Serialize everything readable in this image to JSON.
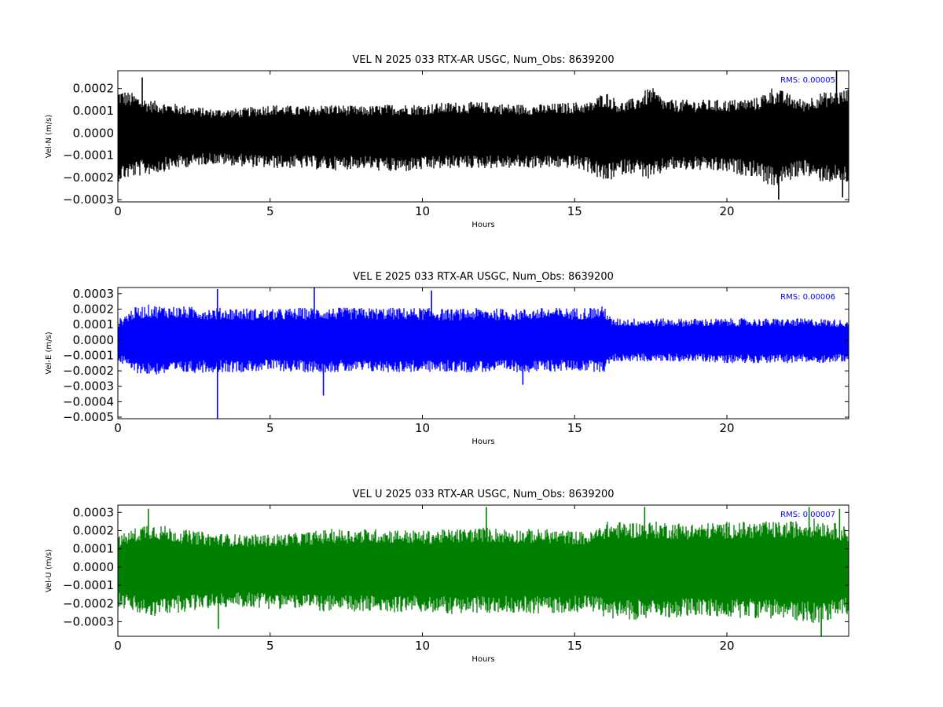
{
  "chart_data": [
    {
      "type": "line",
      "title": "VEL N 2025 033 RTX-AR  USGC, Num_Obs: 8639200",
      "xlabel": "Hours",
      "ylabel": "Vel-N (m/s)",
      "xlim": [
        0,
        24
      ],
      "ylim": [
        -0.00031,
        0.00028
      ],
      "xticks": [
        0,
        5,
        10,
        15,
        20
      ],
      "yticks": [
        -0.0003,
        -0.0002,
        -0.0001,
        0.0,
        0.0001,
        0.0002
      ],
      "ytick_labels": [
        "−0.0003",
        "−0.0002",
        "−0.0001",
        "0.0000",
        "0.0001",
        "0.0002"
      ],
      "color": "#000000",
      "annotation": "RMS:  0.00005",
      "annotation_color": "#0000ff",
      "envelope": {
        "hours": [
          0,
          0.5,
          1,
          2,
          3,
          4,
          5,
          6,
          7,
          8,
          9,
          10,
          11,
          12,
          13,
          14,
          15,
          15.5,
          16,
          16.5,
          17,
          17.5,
          18,
          19,
          20,
          21,
          21.5,
          22,
          22.5,
          23,
          24
        ],
        "upper": [
          0.0002,
          0.00018,
          0.00015,
          0.00013,
          0.00011,
          0.00011,
          0.00013,
          0.00012,
          0.00013,
          0.00012,
          0.00013,
          0.00013,
          0.00014,
          0.00014,
          0.00013,
          0.00013,
          0.00014,
          0.00014,
          0.00019,
          0.00014,
          0.00016,
          0.00021,
          0.00015,
          0.00015,
          0.00015,
          0.00016,
          0.00021,
          0.00018,
          0.00015,
          0.00018,
          0.0002
        ],
        "lower": [
          -0.00022,
          -0.0002,
          -0.00019,
          -0.00016,
          -0.00014,
          -0.00015,
          -0.00016,
          -0.00016,
          -0.00017,
          -0.00016,
          -0.00018,
          -0.00017,
          -0.00016,
          -0.00016,
          -0.00016,
          -0.00016,
          -0.00016,
          -0.00018,
          -0.00023,
          -0.00019,
          -0.00018,
          -0.00022,
          -0.00017,
          -0.00017,
          -0.00018,
          -0.0002,
          -0.00025,
          -0.00022,
          -0.00019,
          -0.00022,
          -0.00023
        ]
      },
      "spikes": [
        {
          "hours": 0.8,
          "value": 0.00025
        },
        {
          "hours": 23.6,
          "value": 0.00028
        },
        {
          "hours": 21.7,
          "value": -0.0003
        },
        {
          "hours": 23.8,
          "value": -0.00029
        }
      ]
    },
    {
      "type": "line",
      "title": "VEL E 2025 033 RTX-AR  USGC, Num_Obs: 8639200",
      "xlabel": "Hours",
      "ylabel": "Vel-E (m/s)",
      "xlim": [
        0,
        24
      ],
      "ylim": [
        -0.00051,
        0.00034
      ],
      "xticks": [
        0,
        5,
        10,
        15,
        20
      ],
      "yticks": [
        -0.0005,
        -0.0004,
        -0.0003,
        -0.0002,
        -0.0001,
        0.0,
        0.0001,
        0.0002,
        0.0003
      ],
      "ytick_labels": [
        "−0.0005",
        "−0.0004",
        "−0.0003",
        "−0.0002",
        "−0.0001",
        "0.0000",
        "0.0001",
        "0.0002",
        "0.0003"
      ],
      "color": "#0000ff",
      "annotation": "RMS:  0.00006",
      "annotation_color": "#0000ff",
      "envelope": {
        "hours": [
          0,
          0.5,
          1,
          2,
          3,
          4,
          5,
          6,
          7,
          8,
          9,
          10,
          11,
          12,
          13,
          14,
          15,
          16,
          16.2,
          17,
          18,
          19,
          20,
          21,
          22,
          23,
          24
        ],
        "upper": [
          0.00013,
          0.00021,
          0.00023,
          0.00022,
          0.00021,
          0.00021,
          0.0002,
          0.00021,
          0.00021,
          0.00021,
          0.00021,
          0.00021,
          0.0002,
          0.00021,
          0.0002,
          0.00021,
          0.00021,
          0.00022,
          0.00014,
          0.00014,
          0.00014,
          0.00014,
          0.00014,
          0.00014,
          0.00014,
          0.00014,
          0.00013
        ],
        "lower": [
          -0.00014,
          -0.00021,
          -0.00023,
          -0.00022,
          -0.00021,
          -0.00021,
          -0.0002,
          -0.00021,
          -0.00021,
          -0.00021,
          -0.00021,
          -0.00021,
          -0.00021,
          -0.00021,
          -0.00021,
          -0.00021,
          -0.0002,
          -0.00021,
          -0.00014,
          -0.00014,
          -0.00014,
          -0.00014,
          -0.00015,
          -0.00015,
          -0.00015,
          -0.00015,
          -0.00014
        ]
      },
      "spikes": [
        {
          "hours": 3.27,
          "value": -0.00052
        },
        {
          "hours": 3.27,
          "value": 0.00033
        },
        {
          "hours": 6.45,
          "value": 0.00034
        },
        {
          "hours": 6.75,
          "value": -0.00036
        },
        {
          "hours": 10.3,
          "value": 0.00032
        },
        {
          "hours": 13.3,
          "value": -0.00029
        }
      ]
    },
    {
      "type": "line",
      "title": "VEL U 2025 033 RTX-AR  USGC, Num_Obs: 8639200",
      "xlabel": "Hours",
      "ylabel": "Vel-U (m/s)",
      "xlim": [
        0,
        24
      ],
      "ylim": [
        -0.00038,
        0.00034
      ],
      "xticks": [
        0,
        5,
        10,
        15,
        20
      ],
      "yticks": [
        -0.0003,
        -0.0002,
        -0.0001,
        0.0,
        0.0001,
        0.0002,
        0.0003
      ],
      "ytick_labels": [
        "−0.0003",
        "−0.0002",
        "−0.0001",
        "0.0000",
        "0.0001",
        "0.0002",
        "0.0003"
      ],
      "color": "#008000",
      "annotation": "RMS:  0.00007",
      "annotation_color": "#0000ff",
      "envelope": {
        "hours": [
          0,
          0.5,
          1,
          2,
          3,
          4,
          5,
          6,
          7,
          8,
          9,
          10,
          11,
          12,
          13,
          14,
          15,
          15.5,
          16,
          17,
          18,
          19,
          20,
          21,
          22,
          23,
          24
        ],
        "upper": [
          0.00017,
          0.00021,
          0.00025,
          0.00021,
          0.00019,
          0.00018,
          0.00018,
          0.00019,
          0.00021,
          0.00021,
          0.00021,
          0.0002,
          0.00021,
          0.00022,
          0.00021,
          0.00021,
          0.0002,
          0.00019,
          0.00025,
          0.00025,
          0.00025,
          0.00024,
          0.00025,
          0.00025,
          0.00025,
          0.00027,
          0.00022
        ],
        "lower": [
          -0.00022,
          -0.00025,
          -0.00028,
          -0.00025,
          -0.00023,
          -0.00022,
          -0.00023,
          -0.00023,
          -0.00025,
          -0.00025,
          -0.00025,
          -0.00025,
          -0.00026,
          -0.00026,
          -0.00025,
          -0.00026,
          -0.00025,
          -0.00024,
          -0.00028,
          -0.00029,
          -0.00028,
          -0.00027,
          -0.00028,
          -0.00028,
          -0.00029,
          -0.00031,
          -0.00026
        ]
      },
      "spikes": [
        {
          "hours": 1.0,
          "value": 0.00032
        },
        {
          "hours": 3.3,
          "value": -0.00034
        },
        {
          "hours": 12.1,
          "value": 0.00033
        },
        {
          "hours": 17.3,
          "value": 0.00033
        },
        {
          "hours": 22.7,
          "value": 0.00033
        },
        {
          "hours": 23.1,
          "value": -0.00038
        },
        {
          "hours": 23.7,
          "value": 0.00032
        }
      ]
    }
  ]
}
